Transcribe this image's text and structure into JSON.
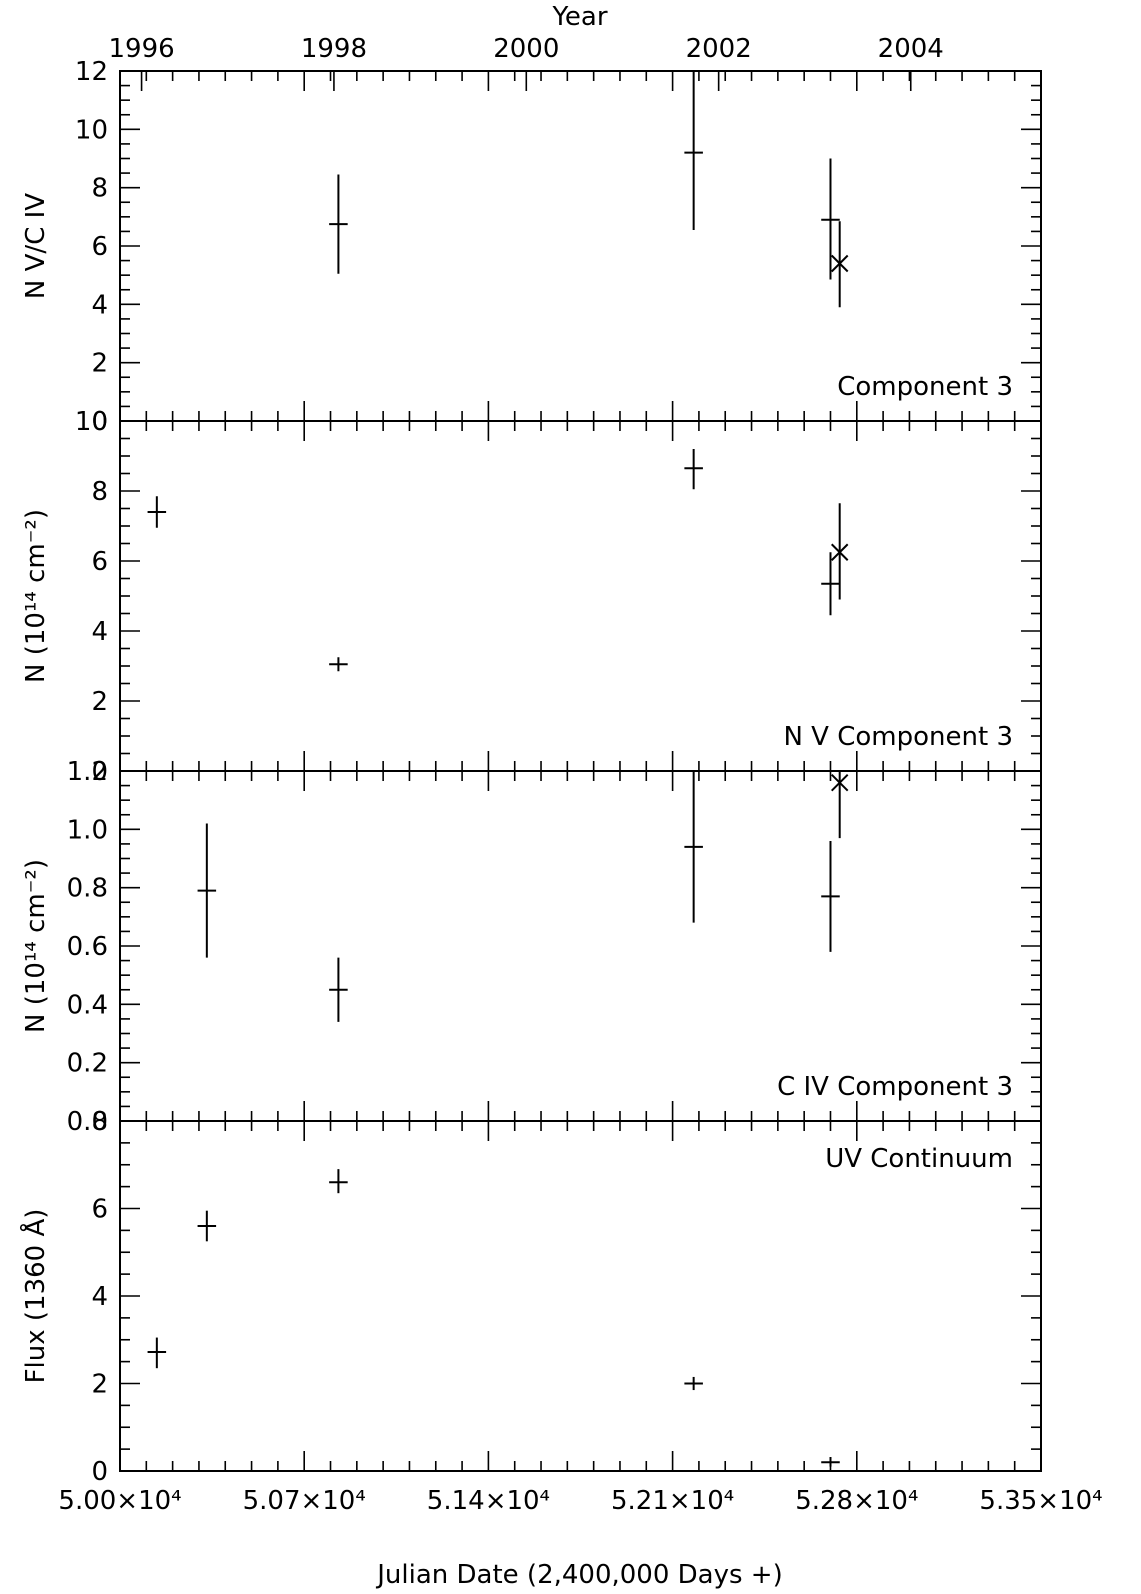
{
  "chart_data": [
    {
      "type": "scatter",
      "panel_label": "Component 3",
      "ylabel": "N V/C IV",
      "ylim": [
        0,
        12
      ],
      "yticks": [
        "0",
        "2",
        "4",
        "6",
        "8",
        "10",
        "12"
      ],
      "points": [
        {
          "x": 50830,
          "y": 6.75,
          "yerr_low": 5.05,
          "yerr_high": 8.45,
          "xerr": 20,
          "marker": "plus"
        },
        {
          "x": 52180,
          "y": 9.2,
          "yerr_low": 6.55,
          "yerr_high": 12.0,
          "xerr": 20,
          "marker": "plus"
        },
        {
          "x": 52700,
          "y": 6.9,
          "yerr_low": 4.85,
          "yerr_high": 9.0,
          "xerr": 20,
          "marker": "plus"
        },
        {
          "x": 52735,
          "y": 5.4,
          "yerr_low": 3.9,
          "yerr_high": 6.85,
          "xerr": 22,
          "marker": "x"
        }
      ]
    },
    {
      "type": "scatter",
      "panel_label": "N V Component 3",
      "ylabel": "N (10¹⁴ cm⁻²)",
      "ylim": [
        0,
        10
      ],
      "yticks": [
        "0",
        "2",
        "4",
        "6",
        "8",
        "10"
      ],
      "points": [
        {
          "x": 50140,
          "y": 7.4,
          "yerr_low": 6.95,
          "yerr_high": 7.85,
          "xerr": 20,
          "marker": "plus"
        },
        {
          "x": 50830,
          "y": 3.05,
          "yerr_low": 2.85,
          "yerr_high": 3.25,
          "xerr": 20,
          "marker": "plus"
        },
        {
          "x": 52180,
          "y": 8.65,
          "yerr_low": 8.05,
          "yerr_high": 9.2,
          "xerr": 20,
          "marker": "plus"
        },
        {
          "x": 52700,
          "y": 5.35,
          "yerr_low": 4.45,
          "yerr_high": 6.25,
          "xerr": 20,
          "marker": "plus"
        },
        {
          "x": 52735,
          "y": 6.25,
          "yerr_low": 4.9,
          "yerr_high": 7.65,
          "xerr": 22,
          "marker": "x"
        }
      ]
    },
    {
      "type": "scatter",
      "panel_label": "C IV Component 3",
      "ylabel": "N (10¹⁴ cm⁻²)",
      "ylim": [
        0,
        1.2
      ],
      "yticks": [
        "0.0",
        "0.2",
        "0.4",
        "0.6",
        "0.8",
        "1.0",
        "1.2"
      ],
      "points": [
        {
          "x": 50330,
          "y": 0.79,
          "yerr_low": 0.56,
          "yerr_high": 1.02,
          "xerr": 20,
          "marker": "plus"
        },
        {
          "x": 50830,
          "y": 0.45,
          "yerr_low": 0.34,
          "yerr_high": 0.56,
          "xerr": 20,
          "marker": "plus"
        },
        {
          "x": 52180,
          "y": 0.94,
          "yerr_low": 0.68,
          "yerr_high": 1.2,
          "xerr": 20,
          "marker": "plus"
        },
        {
          "x": 52700,
          "y": 0.77,
          "yerr_low": 0.58,
          "yerr_high": 0.96,
          "xerr": 20,
          "marker": "plus"
        },
        {
          "x": 52735,
          "y": 1.16,
          "yerr_low": 0.97,
          "yerr_high": 1.2,
          "xerr": 22,
          "marker": "x"
        }
      ]
    },
    {
      "type": "scatter",
      "panel_label": "UV Continuum",
      "ylabel": "Flux (1360 Å)",
      "ylim": [
        0,
        8
      ],
      "yticks": [
        "0",
        "2",
        "4",
        "6",
        "8"
      ],
      "points": [
        {
          "x": 50140,
          "y": 2.72,
          "yerr_low": 2.35,
          "yerr_high": 3.05,
          "xerr": 20,
          "marker": "plus"
        },
        {
          "x": 50330,
          "y": 5.6,
          "yerr_low": 5.25,
          "yerr_high": 5.95,
          "xerr": 20,
          "marker": "plus"
        },
        {
          "x": 50830,
          "y": 6.6,
          "yerr_low": 6.35,
          "yerr_high": 6.9,
          "xerr": 20,
          "marker": "plus"
        },
        {
          "x": 52180,
          "y": 2.0,
          "yerr_low": 1.85,
          "yerr_high": 2.15,
          "xerr": 20,
          "marker": "plus"
        },
        {
          "x": 52700,
          "y": 0.2,
          "yerr_low": 0.1,
          "yerr_high": 0.32,
          "xerr": 20,
          "marker": "plus"
        }
      ]
    }
  ],
  "x_axis": {
    "xlim": [
      50000,
      53500
    ],
    "xlabel": "Julian Date (2,400,000 Days +)",
    "ticks": [
      {
        "value": 50000,
        "label": "5.00×10⁴"
      },
      {
        "value": 50700,
        "label": "5.07×10⁴"
      },
      {
        "value": 51400,
        "label": "5.14×10⁴"
      },
      {
        "value": 52100,
        "label": "5.21×10⁴"
      },
      {
        "value": 52800,
        "label": "5.28×10⁴"
      },
      {
        "value": 53500,
        "label": "5.35×10⁴"
      }
    ]
  },
  "top_axis": {
    "label": "Year",
    "ticks": [
      {
        "value": 50082,
        "label": "1996"
      },
      {
        "value": 50813,
        "label": "1998"
      },
      {
        "value": 51544,
        "label": "2000"
      },
      {
        "value": 52275,
        "label": "2002"
      },
      {
        "value": 53005,
        "label": "2004"
      }
    ]
  }
}
